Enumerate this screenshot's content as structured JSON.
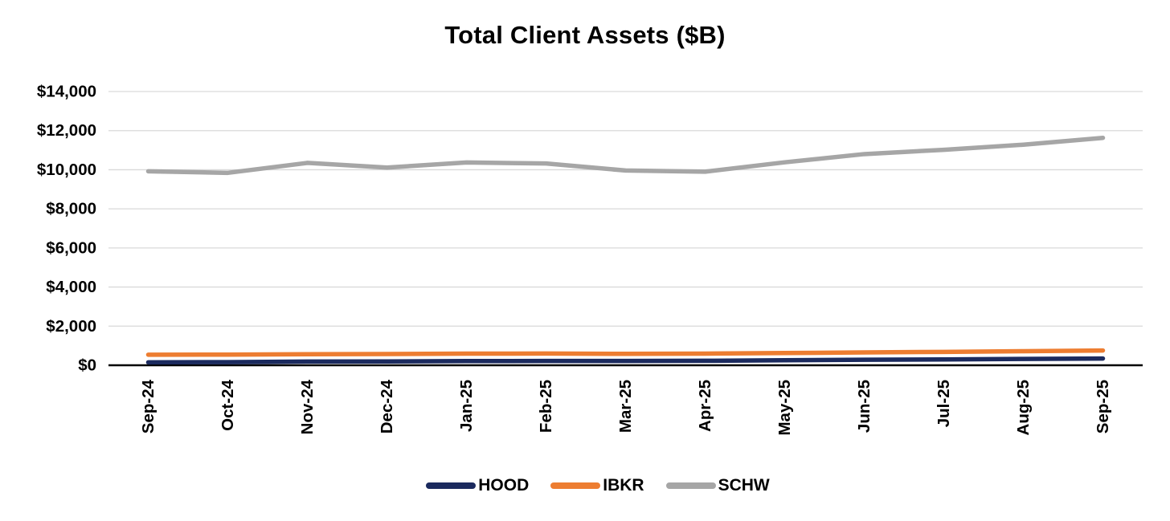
{
  "chart_data": {
    "type": "line",
    "title": "Total Client Assets ($B)",
    "categories": [
      "Sep-24",
      "Oct-24",
      "Nov-24",
      "Dec-24",
      "Jan-25",
      "Feb-25",
      "Mar-25",
      "Apr-25",
      "May-25",
      "Jun-25",
      "Jul-25",
      "Aug-25",
      "Sep-25"
    ],
    "series": [
      {
        "name": "HOOD",
        "color": "#1b2a5e",
        "values": [
          150,
          160,
          190,
          195,
          215,
          220,
          220,
          230,
          255,
          280,
          300,
          325,
          345
        ]
      },
      {
        "name": "IBKR",
        "color": "#ed7d31",
        "values": [
          540,
          545,
          565,
          575,
          595,
          600,
          585,
          595,
          625,
          655,
          685,
          720,
          755
        ]
      },
      {
        "name": "SCHW",
        "color": "#a6a6a6",
        "values": [
          9920,
          9840,
          10350,
          10110,
          10370,
          10320,
          9960,
          9900,
          10380,
          10800,
          11020,
          11280,
          11630
        ]
      }
    ],
    "xlabel": "",
    "ylabel": "",
    "y_axis": {
      "min": 0,
      "max": 14000,
      "step": 2000,
      "tick_labels": [
        "$0",
        "$2,000",
        "$4,000",
        "$6,000",
        "$8,000",
        "$10,000",
        "$12,000",
        "$14,000"
      ]
    },
    "grid": true,
    "legend_position": "bottom"
  },
  "colors": {
    "background": "#ffffff",
    "gridline": "#d9d9d9",
    "axis": "#000000",
    "text": "#000000"
  }
}
